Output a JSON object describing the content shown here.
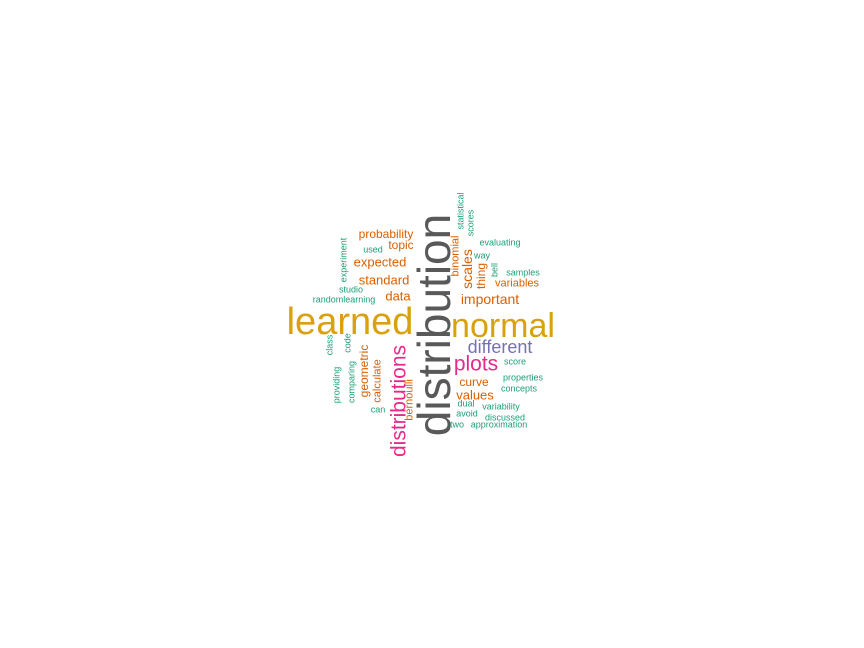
{
  "words": [
    {
      "text": "distribution",
      "tier": 1
    },
    {
      "text": "learned",
      "tier": 2
    },
    {
      "text": "normal",
      "tier": 2
    },
    {
      "text": "distributions",
      "tier": 3
    },
    {
      "text": "plots",
      "tier": 3
    },
    {
      "text": "different",
      "tier": 4
    },
    {
      "text": "probability",
      "tier": 5
    },
    {
      "text": "topic",
      "tier": 5
    },
    {
      "text": "expected",
      "tier": 5
    },
    {
      "text": "standard",
      "tier": 5
    },
    {
      "text": "data",
      "tier": 5
    },
    {
      "text": "important",
      "tier": 5
    },
    {
      "text": "scales",
      "tier": 5
    },
    {
      "text": "thing",
      "tier": 5
    },
    {
      "text": "binomial",
      "tier": 5
    },
    {
      "text": "variables",
      "tier": 5
    },
    {
      "text": "geometric",
      "tier": 5
    },
    {
      "text": "calculate",
      "tier": 5
    },
    {
      "text": "curve",
      "tier": 5
    },
    {
      "text": "values",
      "tier": 5
    },
    {
      "text": "bernoulli",
      "tier": 5
    },
    {
      "text": "statistical",
      "tier": 6
    },
    {
      "text": "scores",
      "tier": 6
    },
    {
      "text": "evaluating",
      "tier": 6
    },
    {
      "text": "way",
      "tier": 6
    },
    {
      "text": "bell",
      "tier": 6
    },
    {
      "text": "samples",
      "tier": 6
    },
    {
      "text": "experiment",
      "tier": 6
    },
    {
      "text": "used",
      "tier": 6
    },
    {
      "text": "studio",
      "tier": 6
    },
    {
      "text": "randomlearning",
      "tier": 6
    },
    {
      "text": "class",
      "tier": 6
    },
    {
      "text": "code",
      "tier": 6
    },
    {
      "text": "providing",
      "tier": 6
    },
    {
      "text": "comparing",
      "tier": 6
    },
    {
      "text": "can",
      "tier": 6
    },
    {
      "text": "score",
      "tier": 6
    },
    {
      "text": "properties",
      "tier": 6
    },
    {
      "text": "concepts",
      "tier": 6
    },
    {
      "text": "dual",
      "tier": 6
    },
    {
      "text": "variability",
      "tier": 6
    },
    {
      "text": "avoid",
      "tier": 6
    },
    {
      "text": "discussed",
      "tier": 6
    },
    {
      "text": "two",
      "tier": 6
    },
    {
      "text": "approximation",
      "tier": 6
    }
  ]
}
